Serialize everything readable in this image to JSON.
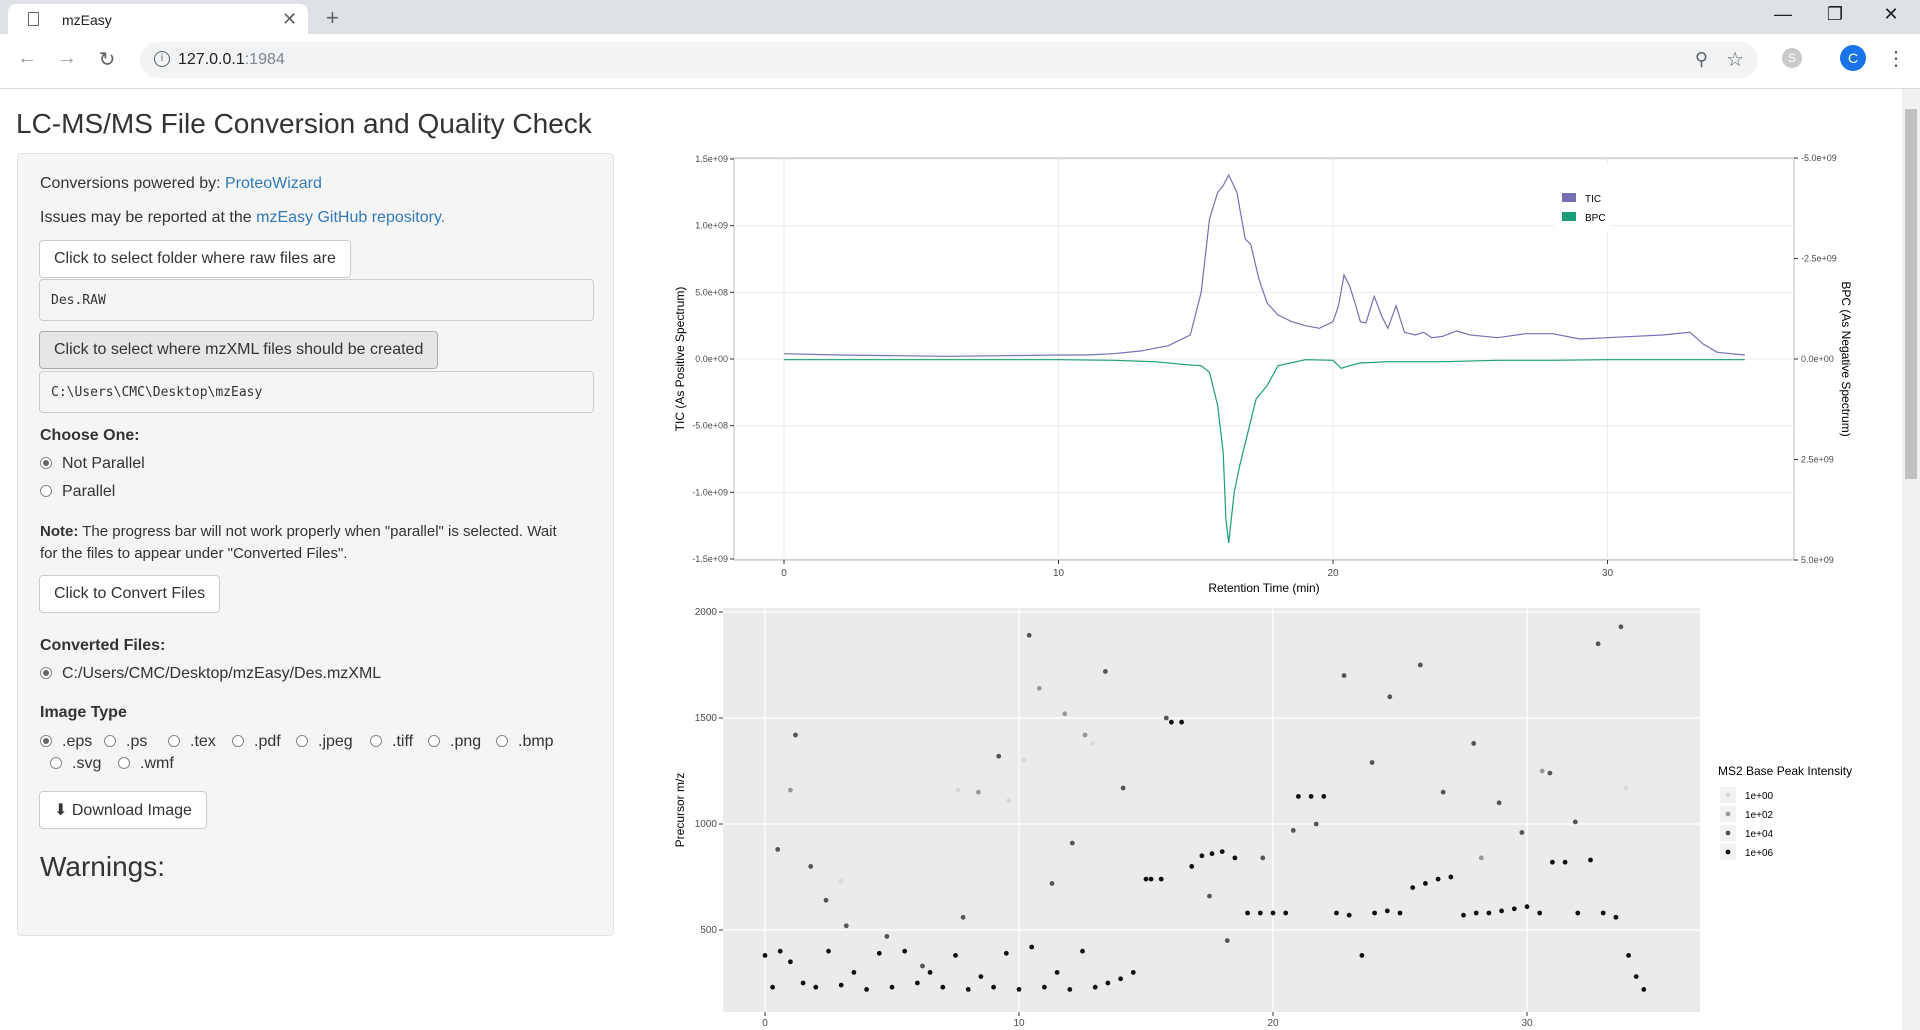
{
  "browser": {
    "tab_title": "mzEasy",
    "url_host": "127.0.0.1",
    "url_port": ":1984",
    "avatar_letter": "C"
  },
  "page": {
    "title": "LC-MS/MS File Conversion and Quality Check",
    "powered_prefix": "Conversions powered by: ",
    "powered_link": "ProteoWizard",
    "issues_prefix": "Issues may be reported at the ",
    "issues_link": "mzEasy GitHub repository.",
    "raw_button": "Click to select folder where raw files are",
    "raw_value": "Des.RAW",
    "mzxml_button": "Click to select where mzXML files should be created",
    "mzxml_value": "C:\\Users\\CMC\\Desktop\\mzEasy",
    "choose_label": "Choose One:",
    "choose_options": [
      "Not Parallel",
      "Parallel"
    ],
    "choose_selected": "Not Parallel",
    "note_bold": "Note:",
    "note_line1": " The progress bar will not work properly when \"parallel\" is selected. Wait",
    "note_line2": "for the files to appear under \"Converted Files\".",
    "convert_button": "Click to Convert Files",
    "converted_label": "Converted Files:",
    "converted_file": "C:/Users/CMC/Desktop/mzEasy/Des.mzXML",
    "image_type_label": "Image Type",
    "image_types": [
      ".eps",
      ".ps",
      ".tex",
      ".pdf",
      ".jpeg",
      ".tiff",
      ".png",
      ".bmp",
      ".svg",
      ".wmf"
    ],
    "image_type_selected": ".eps",
    "download_button": "Download Image",
    "warnings_title": "Warnings:"
  },
  "chart_data": [
    {
      "type": "line",
      "xlabel": "Retention Time (min)",
      "ylabel": "TIC (As Positive Spectrum)",
      "ylabel_right": "BPC (As Negative Spectrum)",
      "xlim": [
        -0.5,
        35
      ],
      "x_ticks": [
        "0",
        "10",
        "20",
        "30"
      ],
      "x_tick_values": [
        0,
        10,
        20,
        30
      ],
      "y_ticks": [
        "1.5e+09",
        "1.0e+09",
        "5.0e+08",
        "0.0e+00",
        "-5.0e+08",
        "-1.0e+09",
        "-1.5e+09"
      ],
      "y_tick_values": [
        1500000000,
        1000000000,
        500000000,
        0,
        -500000000,
        -1000000000,
        -1500000000
      ],
      "y_ticks_right": [
        "-5.0e+09",
        "-2.5e+09",
        "0.0e+00",
        "2.5e+09",
        "5.0e+09"
      ],
      "ylim": [
        -1500000000,
        1500000000
      ],
      "legend_position": "top-right",
      "colors": {
        "TIC": "#7570b3",
        "BPC": "#1b9e77"
      },
      "series": [
        {
          "name": "TIC",
          "x": [
            0,
            2,
            4,
            6,
            8,
            10,
            11,
            12,
            13,
            14,
            14.8,
            15.2,
            15.5,
            15.8,
            16.0,
            16.2,
            16.5,
            16.8,
            17.0,
            17.3,
            17.6,
            18.0,
            18.5,
            19.0,
            19.5,
            20.0,
            20.2,
            20.4,
            20.6,
            20.8,
            21.0,
            21.2,
            21.5,
            21.8,
            22.0,
            22.3,
            22.6,
            23.0,
            23.3,
            23.6,
            24.0,
            24.5,
            25.0,
            25.5,
            26.0,
            27.0,
            28.0,
            29.0,
            30.0,
            31.0,
            32.0,
            33.0,
            33.5,
            34.0,
            35.0
          ],
          "y": [
            40000000,
            30000000,
            25000000,
            20000000,
            25000000,
            30000000,
            30000000,
            40000000,
            60000000,
            100000000,
            180000000,
            500000000,
            1050000000,
            1250000000,
            1300000000,
            1380000000,
            1250000000,
            900000000,
            860000000,
            600000000,
            420000000,
            330000000,
            280000000,
            250000000,
            230000000,
            280000000,
            400000000,
            630000000,
            550000000,
            420000000,
            280000000,
            270000000,
            470000000,
            310000000,
            230000000,
            400000000,
            200000000,
            180000000,
            200000000,
            160000000,
            170000000,
            210000000,
            180000000,
            170000000,
            160000000,
            190000000,
            190000000,
            150000000,
            160000000,
            170000000,
            180000000,
            200000000,
            110000000,
            50000000,
            30000000
          ]
        },
        {
          "name": "BPC",
          "x": [
            0,
            2,
            4,
            6,
            8,
            10,
            12,
            13.5,
            14.5,
            15.2,
            15.5,
            15.8,
            16.0,
            16.1,
            16.2,
            16.4,
            16.6,
            16.9,
            17.2,
            17.6,
            18.0,
            19.0,
            20.0,
            20.3,
            20.6,
            21.0,
            22.0,
            24.0,
            26.0,
            28.0,
            30.0,
            32.0,
            34.0,
            35.0
          ],
          "y": [
            -5000000,
            -5000000,
            -5000000,
            -5000000,
            -5000000,
            -5000000,
            -10000000,
            -20000000,
            -40000000,
            -50000000,
            -100000000,
            -350000000,
            -700000000,
            -1200000000,
            -1380000000,
            -1000000000,
            -800000000,
            -550000000,
            -300000000,
            -200000000,
            -50000000,
            -5000000,
            -10000000,
            -70000000,
            -50000000,
            -30000000,
            -20000000,
            -20000000,
            -10000000,
            -10000000,
            -5000000,
            -5000000,
            -5000000,
            -5000000
          ]
        }
      ]
    },
    {
      "type": "scatter",
      "xlabel": "",
      "ylabel": "Precursor m/z",
      "xlim": [
        -1,
        37
      ],
      "ylim": [
        100,
        2000
      ],
      "x_ticks": [
        "0",
        "10",
        "20",
        "30"
      ],
      "x_tick_values": [
        0,
        10,
        20,
        30
      ],
      "y_ticks": [
        "2000",
        "1500",
        "1000",
        "500"
      ],
      "y_tick_values": [
        2000,
        1500,
        1000,
        500
      ],
      "legend_title": "MS2 Base Peak Intensity",
      "legend_entries": [
        "1e+00",
        "1e+02",
        "1e+04",
        "1e+06"
      ],
      "legend_colors": [
        "#d9d9d9",
        "#999999",
        "#555555",
        "#111111"
      ],
      "series": [
        {
          "name": "1e+06",
          "x": [
            0,
            0.3,
            0.6,
            1,
            1.5,
            2,
            2.5,
            3,
            3.5,
            4,
            4.5,
            5,
            5.5,
            6,
            6.5,
            7,
            7.5,
            8,
            8.5,
            9,
            9.5,
            10,
            10.5,
            11,
            11.5,
            12,
            12.5,
            13,
            13.5,
            14,
            14.5,
            15,
            15.2,
            15.6,
            16,
            16.4,
            16.8,
            17.2,
            17.6,
            18,
            18.5,
            19,
            19.5,
            20,
            20.5,
            21,
            21.5,
            22,
            22.5,
            23,
            23.5,
            24,
            24.5,
            25,
            25.5,
            26,
            26.5,
            27,
            27.5,
            28,
            28.5,
            29,
            29.5,
            30,
            30.5,
            31,
            31.5,
            32,
            32.5,
            33,
            33.5,
            34,
            34.3,
            34.6
          ],
          "y": [
            380,
            230,
            400,
            350,
            250,
            230,
            400,
            240,
            300,
            220,
            390,
            230,
            400,
            250,
            300,
            230,
            380,
            220,
            280,
            230,
            390,
            220,
            420,
            230,
            300,
            220,
            400,
            230,
            250,
            270,
            300,
            740,
            740,
            740,
            1480,
            1480,
            800,
            850,
            860,
            870,
            840,
            580,
            580,
            580,
            580,
            1130,
            1130,
            1130,
            580,
            570,
            380,
            580,
            590,
            580,
            700,
            720,
            740,
            750,
            570,
            580,
            580,
            590,
            600,
            610,
            580,
            820,
            820,
            580,
            830,
            580,
            560,
            380,
            280,
            220
          ]
        },
        {
          "name": "1e+04",
          "x": [
            0.5,
            1.2,
            1.8,
            2.4,
            3.2,
            4.8,
            6.2,
            7.8,
            9.2,
            10.4,
            11.3,
            12.1,
            13.4,
            14.1,
            15.8,
            17.5,
            18.2,
            19.6,
            20.8,
            21.7,
            22.8,
            23.9,
            24.6,
            25.8,
            26.7,
            27.9,
            28.9,
            29.8,
            30.9,
            31.9,
            32.8,
            33.7
          ],
          "y": [
            880,
            1420,
            800,
            640,
            520,
            470,
            330,
            560,
            1320,
            1890,
            720,
            910,
            1720,
            1170,
            1500,
            660,
            450,
            840,
            970,
            1000,
            1700,
            1290,
            1600,
            1750,
            1150,
            1380,
            1100,
            960,
            1240,
            1010,
            1850,
            1930
          ]
        },
        {
          "name": "1e+02",
          "x": [
            1.0,
            8.4,
            10.8,
            11.8,
            12.6,
            28.2,
            30.6
          ],
          "y": [
            1160,
            1150,
            1640,
            1520,
            1420,
            840,
            1250
          ]
        },
        {
          "name": "1e+00",
          "x": [
            3.0,
            7.6,
            9.6,
            10.2,
            12.9,
            33.9
          ],
          "y": [
            730,
            1160,
            1110,
            1300,
            1380,
            1170
          ]
        }
      ]
    }
  ]
}
